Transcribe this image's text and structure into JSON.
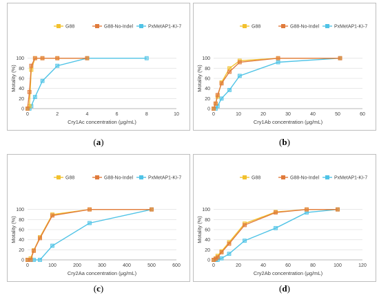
{
  "legend": [
    "G88",
    "G88-No-Indel",
    "PxMetAP1-KI-7"
  ],
  "series_colors": [
    "#f2c12e",
    "#e07b3c",
    "#4fc3e6"
  ],
  "ylabel": "Motality (%)",
  "chart_data": [
    {
      "type": "line",
      "caption": "a",
      "xlabel": "Cry1Ac concentration (μg/mL)",
      "xlim": [
        0,
        10
      ],
      "xticks": [
        0,
        2,
        4,
        6,
        8,
        10
      ],
      "ylim": [
        0,
        120
      ],
      "yticks": [
        0,
        20,
        40,
        60,
        80,
        100
      ],
      "series": [
        {
          "name": "G88",
          "x": [
            0,
            0.125,
            0.25,
            0.5,
            1,
            2,
            4
          ],
          "y": [
            0,
            5,
            77,
            100,
            100,
            100,
            100
          ]
        },
        {
          "name": "G88-No-Indel",
          "x": [
            0,
            0.125,
            0.25,
            0.5,
            1,
            2,
            4
          ],
          "y": [
            0,
            33,
            85,
            100,
            100,
            100,
            100
          ]
        },
        {
          "name": "PxMetAP1-KI-7",
          "x": [
            0,
            0.125,
            0.25,
            0.5,
            1,
            2,
            4,
            8
          ],
          "y": [
            0,
            0,
            5,
            23,
            55,
            85,
            100,
            100
          ]
        }
      ]
    },
    {
      "type": "line",
      "caption": "b",
      "xlabel": "Cry1Ab concentration (μg/mL)",
      "xlim": [
        0,
        60
      ],
      "xticks": [
        0,
        10,
        20,
        30,
        40,
        50,
        60
      ],
      "ylim": [
        0,
        120
      ],
      "yticks": [
        0,
        20,
        40,
        60,
        80,
        100
      ],
      "series": [
        {
          "name": "G88",
          "x": [
            0,
            0.8,
            1.6,
            3.2,
            6.4,
            10.5,
            26,
            51
          ],
          "y": [
            0,
            10,
            24,
            52,
            80,
            95,
            100,
            100
          ]
        },
        {
          "name": "G88-No-Indel",
          "x": [
            0,
            0.8,
            1.6,
            3.2,
            6.4,
            10.5,
            26,
            51
          ],
          "y": [
            0,
            10,
            27,
            50,
            73,
            92,
            100,
            100
          ]
        },
        {
          "name": "PxMetAP1-KI-7",
          "x": [
            0,
            0.8,
            1.6,
            3.2,
            6.4,
            10.5,
            26,
            51
          ],
          "y": [
            0,
            0,
            5,
            20,
            37,
            65,
            92,
            100
          ]
        }
      ]
    },
    {
      "type": "line",
      "caption": "c",
      "xlabel": "Cry2Aa concentration (μg/mL)",
      "xlim": [
        0,
        600
      ],
      "xticks": [
        0,
        100,
        200,
        300,
        400,
        500,
        600
      ],
      "ylim": [
        0,
        120
      ],
      "yticks": [
        0,
        20,
        40,
        60,
        80,
        100
      ],
      "series": [
        {
          "name": "G88",
          "x": [
            0,
            12.5,
            25,
            50,
            100,
            250,
            500
          ],
          "y": [
            0,
            3,
            19,
            45,
            90,
            100,
            100
          ]
        },
        {
          "name": "G88-No-Indel",
          "x": [
            0,
            12.5,
            25,
            50,
            100,
            250,
            500
          ],
          "y": [
            0,
            0,
            18,
            43,
            88,
            100,
            100
          ]
        },
        {
          "name": "PxMetAP1-KI-7",
          "x": [
            0,
            12.5,
            25,
            50,
            100,
            250,
            500
          ],
          "y": [
            0,
            0,
            0,
            0,
            28,
            73,
            100
          ]
        }
      ]
    },
    {
      "type": "line",
      "caption": "d",
      "xlabel": "Cry2Ab concentration (μg/mL)",
      "xlim": [
        0,
        120
      ],
      "xticks": [
        0,
        20,
        40,
        60,
        80,
        100,
        120
      ],
      "ylim": [
        0,
        120
      ],
      "yticks": [
        0,
        20,
        40,
        60,
        80,
        100
      ],
      "series": [
        {
          "name": "G88",
          "x": [
            0,
            1.6,
            3.2,
            6.4,
            12.5,
            25,
            50,
            75,
            100
          ],
          "y": [
            0,
            3,
            8,
            17,
            35,
            72,
            95,
            100,
            100
          ]
        },
        {
          "name": "G88-No-Indel",
          "x": [
            0,
            1.6,
            3.2,
            6.4,
            12.5,
            25,
            50,
            75,
            100
          ],
          "y": [
            0,
            2,
            5,
            15,
            32,
            69,
            94,
            100,
            100
          ]
        },
        {
          "name": "PxMetAP1-KI-7",
          "x": [
            0,
            1.6,
            3.2,
            6.4,
            12.5,
            25,
            50,
            75,
            100
          ],
          "y": [
            0,
            0,
            0,
            3,
            12,
            38,
            63,
            94,
            100
          ]
        }
      ]
    }
  ]
}
